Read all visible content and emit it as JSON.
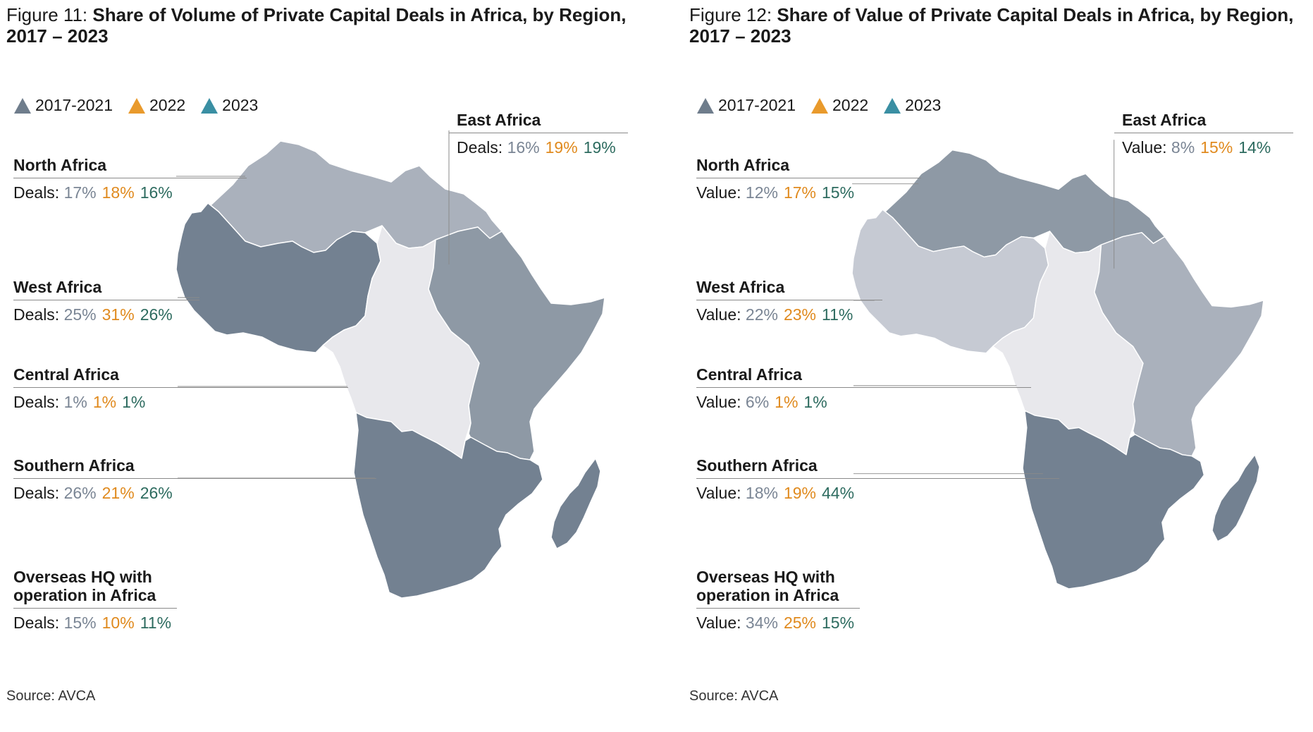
{
  "colors": {
    "series": [
      "#6f7d8c",
      "#e99a2c",
      "#3a8fa3"
    ],
    "value_text": [
      "#7a8594",
      "#e08a1e",
      "#2d6b5f"
    ],
    "shades": {
      "darkest": "#738191",
      "dark": "#8e99a5",
      "mid": "#aab1bc",
      "light": "#c6cad3",
      "lightest": "#e8e8ec"
    }
  },
  "legend": [
    {
      "label": "2017-2021",
      "icon": "triangle-icon"
    },
    {
      "label": "2022",
      "icon": "triangle-icon"
    },
    {
      "label": "2023",
      "icon": "triangle-icon"
    }
  ],
  "chart_data": [
    {
      "type": "map",
      "figure_label": "Figure 11:",
      "title": "Share of Volume of Private Capital Deals in Africa, by Region, 2017 – 2023",
      "series": [
        "2017-2021",
        "2022",
        "2023"
      ],
      "metric_label": "Deals:",
      "regions": [
        {
          "name": "North Africa",
          "values": [
            "17%",
            "18%",
            "16%"
          ],
          "shade": "mid"
        },
        {
          "name": "West Africa",
          "values": [
            "25%",
            "31%",
            "26%"
          ],
          "shade": "darkest"
        },
        {
          "name": "Central Africa",
          "values": [
            "1%",
            "1%",
            "1%"
          ],
          "shade": "lightest"
        },
        {
          "name": "Southern Africa",
          "values": [
            "26%",
            "21%",
            "26%"
          ],
          "shade": "darkest"
        },
        {
          "name": "Overseas HQ with operation in Africa",
          "values": [
            "15%",
            "10%",
            "11%"
          ],
          "shade": null
        },
        {
          "name": "East Africa",
          "values": [
            "16%",
            "19%",
            "19%"
          ],
          "shade": "dark"
        }
      ],
      "source": "Source: AVCA"
    },
    {
      "type": "map",
      "figure_label": "Figure 12:",
      "title": "Share of Value of Private Capital Deals in Africa, by Region, 2017 – 2023",
      "series": [
        "2017-2021",
        "2022",
        "2023"
      ],
      "metric_label": "Value:",
      "regions": [
        {
          "name": "North Africa",
          "values": [
            "12%",
            "17%",
            "15%"
          ],
          "shade": "dark"
        },
        {
          "name": "West Africa",
          "values": [
            "22%",
            "23%",
            "11%"
          ],
          "shade": "light"
        },
        {
          "name": "Central Africa",
          "values": [
            "6%",
            "1%",
            "1%"
          ],
          "shade": "lightest"
        },
        {
          "name": "Southern Africa",
          "values": [
            "18%",
            "19%",
            "44%"
          ],
          "shade": "darkest"
        },
        {
          "name": "Overseas HQ with operation in Africa",
          "values": [
            "34%",
            "25%",
            "15%"
          ],
          "shade": null
        },
        {
          "name": "East Africa",
          "values": [
            "8%",
            "15%",
            "14%"
          ],
          "shade": "mid"
        }
      ],
      "source": "Source: AVCA"
    }
  ]
}
